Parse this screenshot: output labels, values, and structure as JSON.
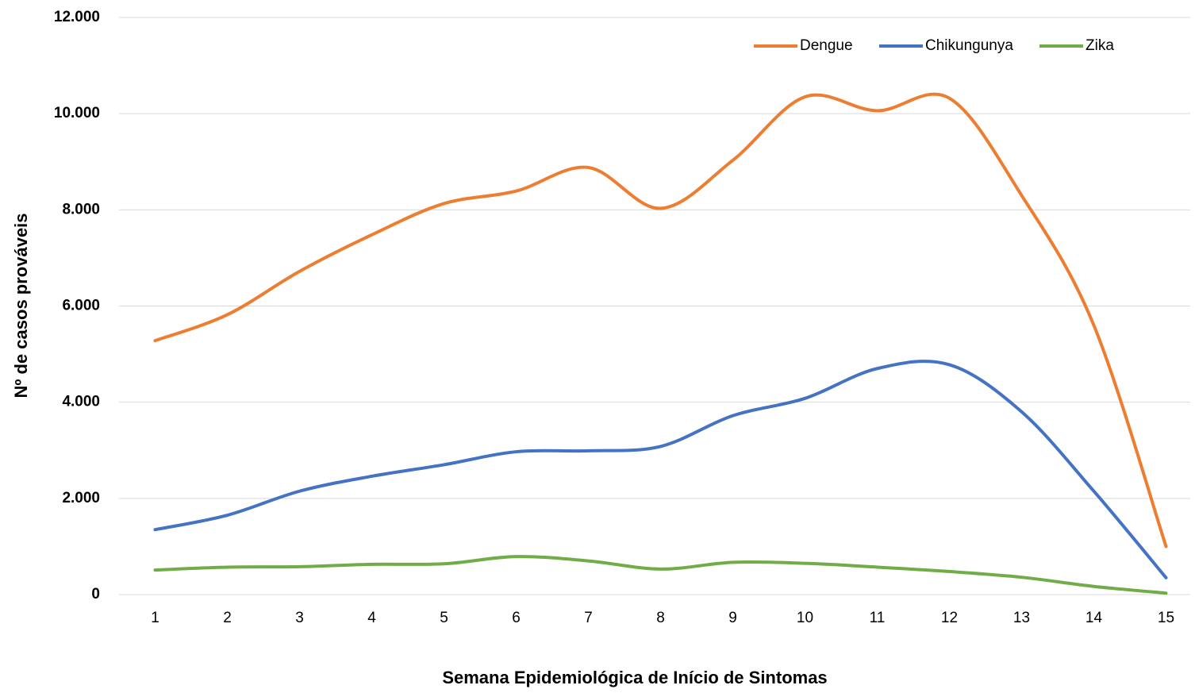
{
  "chart_data": {
    "type": "line",
    "x_label": "Semana Epidemiológica de Início de Sintomas",
    "y_label": "Nº de casos prováveis",
    "categories": [
      "1",
      "2",
      "3",
      "4",
      "5",
      "6",
      "7",
      "8",
      "9",
      "10",
      "11",
      "12",
      "13",
      "14",
      "15"
    ],
    "series": [
      {
        "name": "Dengue",
        "color": "#ed7d31",
        "values": [
          5280,
          5820,
          6720,
          7480,
          8130,
          8390,
          8880,
          8030,
          9030,
          10350,
          10060,
          10320,
          8300,
          5600,
          1000
        ]
      },
      {
        "name": "Chikungunya",
        "color": "#4472c4",
        "values": [
          1350,
          1650,
          2150,
          2460,
          2700,
          2970,
          2990,
          3080,
          3720,
          4080,
          4700,
          4780,
          3800,
          2150,
          350
        ]
      },
      {
        "name": "Zika",
        "color": "#70ad47",
        "values": [
          510,
          570,
          580,
          630,
          640,
          790,
          700,
          530,
          670,
          650,
          570,
          480,
          360,
          170,
          30
        ]
      }
    ],
    "ylim": [
      0,
      12000
    ],
    "yticks": [
      0,
      {
        "value": 2000,
        "label": "2.000"
      },
      {
        "value": 4000,
        "label": "4.000"
      },
      {
        "value": 6000,
        "label": "6.000"
      },
      {
        "value": 8000,
        "label": "8.000"
      },
      {
        "value": 10000,
        "label": "10.000"
      },
      {
        "value": 12000,
        "label": "12.000"
      }
    ],
    "grid": true,
    "legend": "top-right",
    "smooth": true
  }
}
